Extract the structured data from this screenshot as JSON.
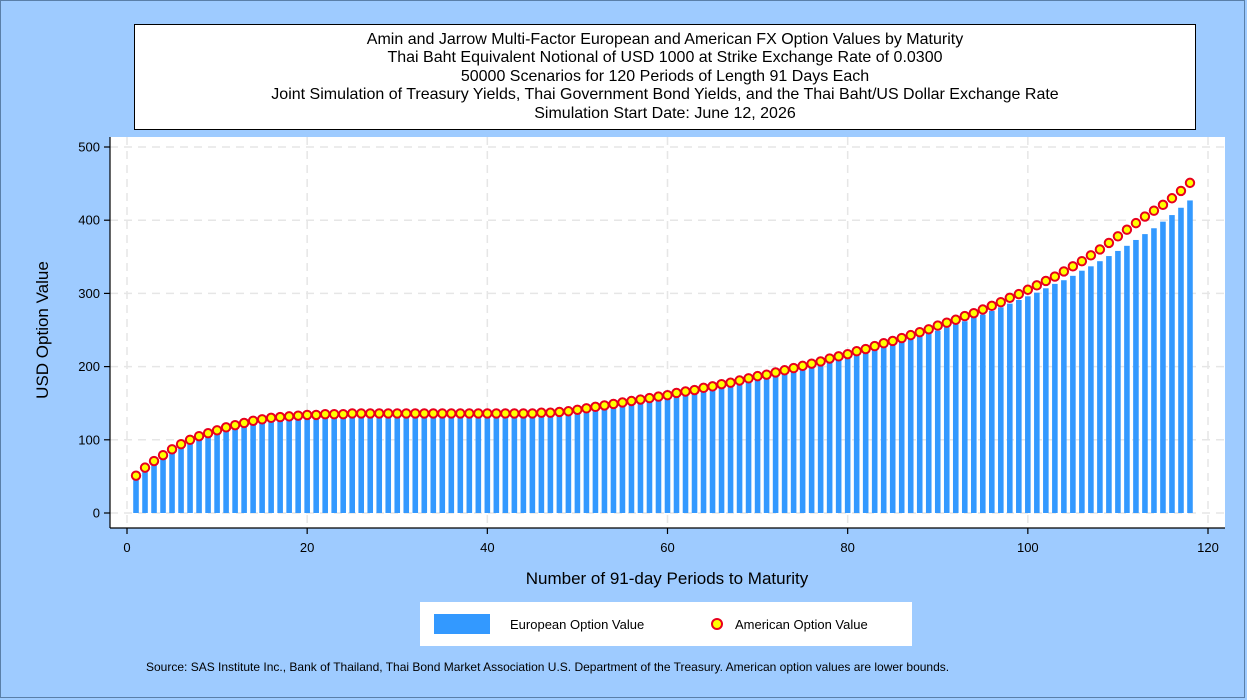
{
  "title_lines": [
    "Amin and Jarrow Multi-Factor European and American FX Option Values by Maturity",
    "Thai Baht Equivalent Notional of USD 1000 at Strike Exchange Rate of  0.0300",
    "50000 Scenarios for 120 Periods of Length 91 Days Each",
    "Joint Simulation of Treasury Yields, Thai Government Bond Yields, and the Thai Baht/US Dollar Exchange Rate",
    "Simulation Start Date: June 12, 2026"
  ],
  "legend": {
    "european": "European Option Value",
    "american": "American Option Value"
  },
  "source": "Source: SAS Institute Inc., Bank of Thailand, Thai Bond Market Association U.S. Department of the Treasury. American option values are lower bounds.",
  "colors": {
    "background": "#9ecbff",
    "bar": "#3399ff",
    "marker_fill": "#ffff00",
    "marker_edge": "#e8001c",
    "grid": "#e6e6e6"
  },
  "chart_data": {
    "type": "bar",
    "xlabel": "Number of 91-day Periods to Maturity",
    "ylabel": "USD Option Value",
    "xlim": [
      0,
      120
    ],
    "ylim": [
      0,
      500
    ],
    "xticks": [
      0,
      20,
      40,
      60,
      80,
      100,
      120
    ],
    "yticks": [
      0,
      100,
      200,
      300,
      400,
      500
    ],
    "grid": true,
    "legend_position": "bottom",
    "x": [
      1,
      2,
      3,
      4,
      5,
      6,
      7,
      8,
      9,
      10,
      11,
      12,
      13,
      14,
      15,
      16,
      17,
      18,
      19,
      20,
      21,
      22,
      23,
      24,
      25,
      26,
      27,
      28,
      29,
      30,
      31,
      32,
      33,
      34,
      35,
      36,
      37,
      38,
      39,
      40,
      41,
      42,
      43,
      44,
      45,
      46,
      47,
      48,
      49,
      50,
      51,
      52,
      53,
      54,
      55,
      56,
      57,
      58,
      59,
      60,
      61,
      62,
      63,
      64,
      65,
      66,
      67,
      68,
      69,
      70,
      71,
      72,
      73,
      74,
      75,
      76,
      77,
      78,
      79,
      80,
      81,
      82,
      83,
      84,
      85,
      86,
      87,
      88,
      89,
      90,
      91,
      92,
      93,
      94,
      95,
      96,
      97,
      98,
      99,
      100,
      101,
      102,
      103,
      104,
      105,
      106,
      107,
      108,
      109,
      110,
      111,
      112,
      113,
      114,
      115,
      116,
      117,
      118
    ],
    "series": [
      {
        "name": "European Option Value",
        "type": "bar",
        "values": [
          49,
          60,
          69,
          77,
          85,
          92,
          97,
          103,
          107,
          111,
          115,
          118,
          121,
          124,
          126,
          128,
          129,
          130,
          131,
          132,
          132,
          133,
          133,
          133,
          134,
          134,
          134,
          134,
          134,
          134,
          134,
          134,
          134,
          134,
          134,
          134,
          134,
          134,
          134,
          134,
          134,
          134,
          134,
          134,
          134,
          135,
          135,
          136,
          137,
          139,
          140,
          142,
          144,
          146,
          148,
          150,
          152,
          154,
          156,
          158,
          160,
          163,
          165,
          167,
          170,
          172,
          175,
          177,
          180,
          183,
          185,
          188,
          191,
          194,
          197,
          200,
          203,
          206,
          209,
          212,
          216,
          219,
          223,
          226,
          230,
          234,
          238,
          241,
          245,
          249,
          254,
          258,
          262,
          267,
          271,
          276,
          281,
          286,
          291,
          296,
          301,
          307,
          313,
          318,
          324,
          331,
          337,
          344,
          351,
          358,
          365,
          373,
          381,
          389,
          398,
          407,
          417,
          427
        ]
      },
      {
        "name": "American Option Value",
        "type": "scatter",
        "values": [
          51,
          62,
          71,
          79,
          87,
          94,
          100,
          105,
          109,
          113,
          117,
          120,
          123,
          126,
          128,
          130,
          131,
          132,
          133,
          134,
          134,
          135,
          135,
          135,
          136,
          136,
          136,
          136,
          136,
          136,
          136,
          136,
          136,
          136,
          136,
          136,
          136,
          136,
          136,
          136,
          136,
          136,
          136,
          136,
          136,
          137,
          137,
          138,
          139,
          141,
          143,
          145,
          147,
          149,
          151,
          153,
          155,
          157,
          159,
          161,
          164,
          166,
          168,
          171,
          173,
          176,
          178,
          181,
          184,
          187,
          189,
          192,
          195,
          198,
          201,
          204,
          207,
          211,
          214,
          217,
          221,
          224,
          228,
          232,
          235,
          239,
          243,
          247,
          251,
          256,
          260,
          264,
          269,
          273,
          278,
          283,
          288,
          294,
          299,
          305,
          311,
          317,
          323,
          330,
          337,
          344,
          352,
          360,
          369,
          378,
          387,
          396,
          405,
          413,
          421,
          430,
          440,
          451
        ]
      }
    ]
  }
}
